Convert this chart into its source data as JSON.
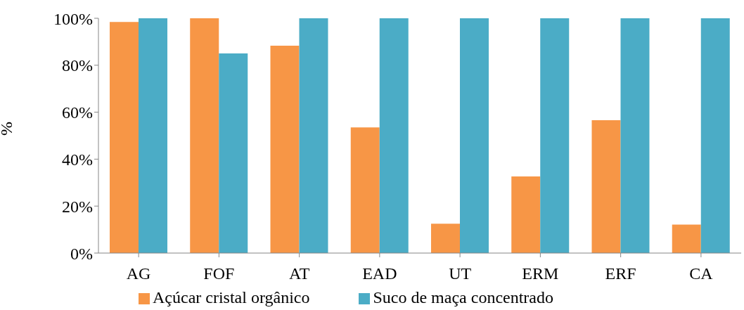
{
  "chart_data": {
    "type": "bar",
    "ylabel": "%",
    "categories": [
      "AG",
      "FOF",
      "AT",
      "EAD",
      "UT",
      "ERM",
      "ERF",
      "CA"
    ],
    "series": [
      {
        "name": "Açúcar cristal orgânico",
        "color": "#f79646",
        "values": [
          98.4,
          100,
          88.3,
          53.5,
          12.5,
          32.6,
          56.6,
          12.1
        ]
      },
      {
        "name": "Suco de maça concentrado",
        "color": "#4bacc6",
        "values": [
          100,
          85,
          100,
          100,
          100,
          100,
          100,
          100
        ]
      }
    ],
    "ylim": [
      0,
      100
    ],
    "yticks": [
      {
        "value": 0,
        "label": "0%"
      },
      {
        "value": 20,
        "label": "20%"
      },
      {
        "value": 40,
        "label": "40%"
      },
      {
        "value": 60,
        "label": "60%"
      },
      {
        "value": 80,
        "label": "80%"
      },
      {
        "value": 100,
        "label": "100%"
      }
    ],
    "grid": false,
    "legend": "bottom"
  }
}
